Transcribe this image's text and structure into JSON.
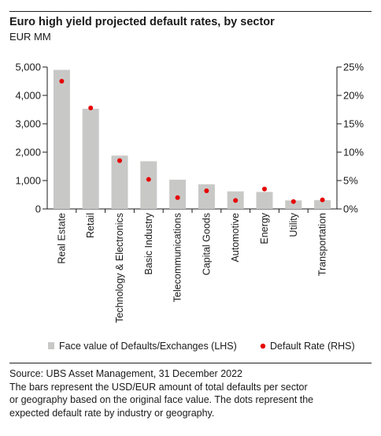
{
  "header": {
    "title": "Euro high yield projected default rates, by sector",
    "subtitle": "EUR MM"
  },
  "colors": {
    "bar": "#c8c9c7",
    "dot": "#e60000",
    "axis": "#1a1a1a"
  },
  "chart_data": {
    "type": "bar",
    "categories": [
      "Real Estate",
      "Retail",
      "Technology & Electronics",
      "Basic Industry",
      "Telecommunications",
      "Capital Goods",
      "Automotive",
      "Energy",
      "Utility",
      "Transportation"
    ],
    "series": [
      {
        "name": "Face value of Defaults/Exchanges (LHS)",
        "axis": "left",
        "type": "bar",
        "values": [
          4900,
          3530,
          1880,
          1680,
          1030,
          870,
          620,
          600,
          300,
          310
        ]
      },
      {
        "name": "Default Rate (RHS)",
        "axis": "right",
        "type": "scatter",
        "values": [
          22.5,
          17.8,
          8.5,
          5.2,
          2.0,
          3.2,
          1.5,
          3.5,
          1.3,
          1.6
        ]
      }
    ],
    "y_left": {
      "lim": [
        0,
        5000
      ],
      "ticks": [
        "0",
        "1,000",
        "2,000",
        "3,000",
        "4,000",
        "5,000"
      ]
    },
    "y_right": {
      "lim": [
        0,
        25
      ],
      "ticks": [
        "0%",
        "5%",
        "10%",
        "15%",
        "20%",
        "25%"
      ]
    },
    "legend": {
      "position": "bottom",
      "entries": [
        "Face value of Defaults/Exchanges (LHS)",
        "Default Rate (RHS)"
      ]
    },
    "grid": false
  },
  "footer": {
    "lines": [
      "Source: UBS Asset Management, 31 December 2022",
      "The bars represent the USD/EUR amount of total defaults per sector",
      "or geography based on the original face value. The dots represent the",
      "expected default rate by industry or geography."
    ]
  }
}
